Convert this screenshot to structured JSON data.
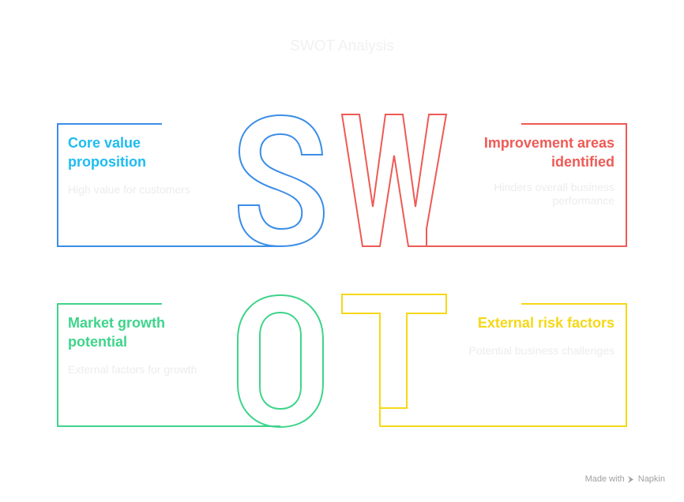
{
  "title": "SWOT Analysis",
  "quadrants": {
    "strengths": {
      "letter": "S",
      "heading_line1": "Core value",
      "heading_line2": "proposition",
      "description": "High value for customers",
      "color": "#1ebcf0",
      "outline_color": "#3b8de8"
    },
    "weaknesses": {
      "letter": "W",
      "heading_line1": "Improvement areas",
      "heading_line2": "identified",
      "description_line1": "Hinders overall business",
      "description_line2": "performance",
      "color": "#ee5a55",
      "outline_color": "#ee5a55"
    },
    "opportunities": {
      "letter": "O",
      "heading_line1": "Market growth",
      "heading_line2": "potential",
      "description": "External factors for growth",
      "color": "#3ed48a",
      "outline_color": "#3ed48a"
    },
    "threats": {
      "letter": "T",
      "heading_line1": "External risk factors",
      "description": "Potential business challenges",
      "color": "#f5d816",
      "outline_color": "#f5d816"
    }
  },
  "footer": {
    "made_with": "Made with",
    "brand": "Napkin"
  }
}
